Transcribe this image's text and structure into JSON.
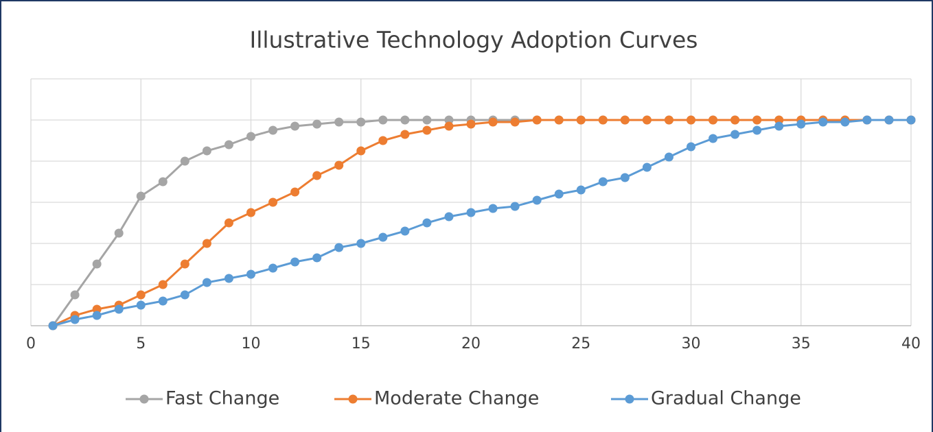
{
  "chart_data": {
    "type": "line",
    "title": "Illustrative Technology Adoption Curves",
    "x": [
      1,
      2,
      3,
      4,
      5,
      6,
      7,
      8,
      9,
      10,
      11,
      12,
      13,
      14,
      15,
      16,
      17,
      18,
      19,
      20,
      21,
      22,
      23,
      24,
      25,
      26,
      27,
      28,
      29,
      30,
      31,
      32,
      33,
      34,
      35,
      36,
      37,
      38,
      39,
      40
    ],
    "xlim": [
      0,
      40
    ],
    "xticks": [
      0,
      5,
      10,
      15,
      20,
      25,
      30,
      35,
      40
    ],
    "ylim": [
      0,
      120
    ],
    "yticks": [
      0,
      20,
      40,
      60,
      80,
      100,
      120
    ],
    "grid": true,
    "legend": "bottom",
    "series": [
      {
        "name": "Fast Change",
        "color": "#a5a5a5",
        "values": [
          0,
          15,
          30,
          45,
          63,
          70,
          80,
          85,
          88,
          92,
          95,
          97,
          98,
          99,
          99,
          100,
          100,
          100,
          100,
          100,
          100,
          100,
          100,
          100,
          100,
          100,
          100,
          100,
          100,
          100,
          100,
          100,
          100,
          100,
          100,
          100,
          100,
          100,
          100,
          100
        ]
      },
      {
        "name": "Moderate Change",
        "color": "#ed7d31",
        "values": [
          0,
          5,
          8,
          10,
          15,
          20,
          30,
          40,
          50,
          55,
          60,
          65,
          73,
          78,
          85,
          90,
          93,
          95,
          97,
          98,
          99,
          99,
          100,
          100,
          100,
          100,
          100,
          100,
          100,
          100,
          100,
          100,
          100,
          100,
          100,
          100,
          100,
          100,
          100,
          100
        ]
      },
      {
        "name": "Gradual Change",
        "color": "#5b9bd5",
        "values": [
          0,
          3,
          5,
          8,
          10,
          12,
          15,
          21,
          23,
          25,
          28,
          31,
          33,
          38,
          40,
          43,
          46,
          50,
          53,
          55,
          57,
          58,
          61,
          64,
          66,
          70,
          72,
          77,
          82,
          87,
          91,
          93,
          95,
          97,
          98,
          99,
          99,
          100,
          100,
          100
        ]
      }
    ]
  }
}
